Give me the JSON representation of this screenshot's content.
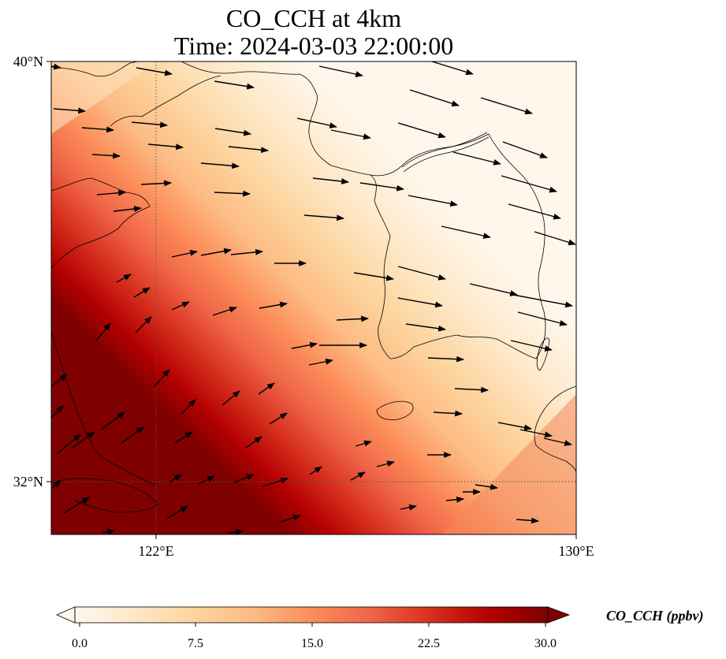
{
  "title": {
    "line1": "CO_CCH at 4km",
    "line2": "Time: 2024-03-03 22:00:00"
  },
  "map": {
    "lon_range": [
      120,
      130
    ],
    "lat_range": [
      31,
      40
    ],
    "lon_ticks": [
      {
        "value": 122,
        "label": "122°E"
      },
      {
        "value": 130,
        "label": "130°E"
      }
    ],
    "lat_ticks": [
      {
        "value": 40,
        "label": "40°N"
      },
      {
        "value": 32,
        "label": "32°N"
      }
    ],
    "gridlines": {
      "lon": [
        122
      ],
      "lat": [
        32
      ],
      "style": "dotted"
    },
    "field": "CO_CCH",
    "plume": "high concentrations in the south-west (Yellow Sea / eastern China coast), decreasing toward the north-east",
    "wind_vectors": "westerly, mostly toward east / east-north-east"
  },
  "colorbar": {
    "title": "CO_CCH (ppbv)",
    "min": 0,
    "max": 30,
    "tick_labels": [
      "0.0",
      "7.5",
      "15.0",
      "22.5",
      "30.0"
    ],
    "extend": "both",
    "colormap": "OrRd"
  }
}
